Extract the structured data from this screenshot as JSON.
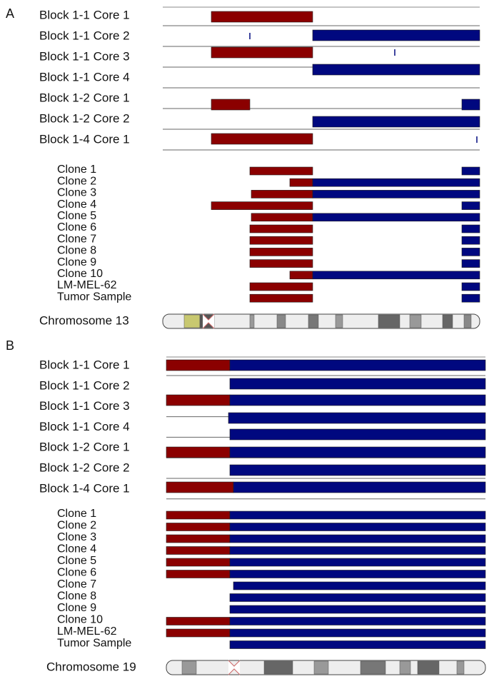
{
  "panels": [
    {
      "label": "A",
      "rows": [
        "Block 1-1 Core 1",
        "Block 1-1 Core 2",
        "Block 1-1 Core 3",
        "Block 1-1 Core 4",
        "Block 1-2 Core 1",
        "Block 1-2 Core 2",
        "Block 1-4 Core 1"
      ],
      "clones": [
        "Clone 1",
        "Clone 2",
        "Clone 3",
        "Clone 4",
        "Clone 5",
        "Clone 6",
        "Clone 7",
        "Clone 8",
        "Clone 9",
        "Clone 10",
        "LM-MEL-62",
        "Tumor Sample"
      ],
      "chromosome": "Chromosome 13"
    },
    {
      "label": "B",
      "rows": [
        "Block 1-1 Core 1",
        "Block 1-1 Core 2",
        "Block 1-1 Core 3",
        "Block 1-1 Core 4",
        "Block 1-2 Core 1",
        "Block 1-2 Core 2",
        "Block 1-4 Core 1"
      ],
      "clones": [
        "Clone 1",
        "Clone 2",
        "Clone 3",
        "Clone 4",
        "Clone 5",
        "Clone 6",
        "Clone 7",
        "Clone 8",
        "Clone 9",
        "Clone 10",
        "LM-MEL-62",
        "Tumor Sample"
      ],
      "chromosome": "Chromosome 19"
    }
  ]
}
